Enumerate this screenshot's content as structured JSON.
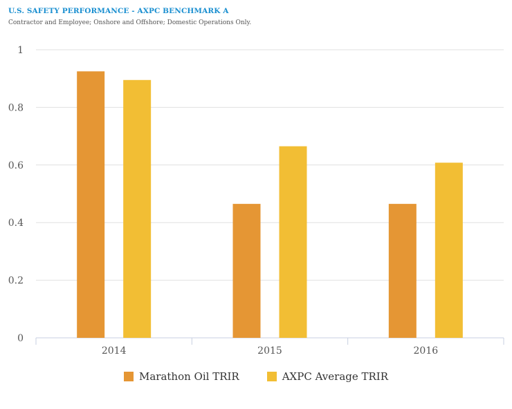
{
  "header": {
    "title": "U.S. SAFETY PERFORMANCE - AXPC BENCHMARK A",
    "subtitle": "Contractor and Employee; Onshore and Offshore; Domestic Operations Only."
  },
  "colors": {
    "title": "#1a8fd0",
    "gridline": "#e0e0e0",
    "axis": "#c7cfe0"
  },
  "chart_data": {
    "type": "bar",
    "title": "U.S. SAFETY PERFORMANCE - AXPC BENCHMARK A",
    "subtitle": "Contractor and Employee; Onshore and Offshore; Domestic Operations Only.",
    "categories": [
      "2014",
      "2015",
      "2016"
    ],
    "series": [
      {
        "name": "Marathon Oil TRIR",
        "color": "#e59634",
        "values": [
          0.925,
          0.465,
          0.465
        ]
      },
      {
        "name": "AXPC Average TRIR",
        "color": "#f2be34",
        "values": [
          0.895,
          0.665,
          0.608
        ]
      }
    ],
    "xlabel": "",
    "ylabel": "",
    "ylim": [
      0,
      1
    ],
    "yticks": [
      "0",
      "0.2",
      "0.4",
      "0.6",
      "0.8",
      "1"
    ],
    "grid": true,
    "legend_position": "bottom"
  }
}
